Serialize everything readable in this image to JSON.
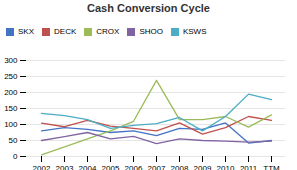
{
  "chart_data": {
    "type": "line",
    "title": "Cash Conversion Cycle",
    "categories": [
      "2002",
      "2003",
      "2004",
      "2005",
      "2006",
      "2007",
      "2008",
      "2009",
      "2010",
      "2011",
      "TTM"
    ],
    "series": [
      {
        "name": "SKX",
        "color": "#4472C4",
        "values": [
          80,
          90,
          85,
          75,
          80,
          65,
          88,
          85,
          105,
          42,
          50
        ]
      },
      {
        "name": "DECK",
        "color": "#C0504D",
        "values": [
          104,
          93,
          113,
          95,
          88,
          80,
          105,
          70,
          90,
          125,
          113
        ]
      },
      {
        "name": "CROX",
        "color": "#9BBB59",
        "values": [
          5,
          30,
          55,
          80,
          110,
          238,
          115,
          115,
          125,
          92,
          130
        ]
      },
      {
        "name": "SHOO",
        "color": "#8064A2",
        "values": [
          50,
          62,
          75,
          55,
          63,
          40,
          55,
          50,
          48,
          45,
          48
        ]
      },
      {
        "name": "KSWS",
        "color": "#4BACC6",
        "values": [
          135,
          128,
          115,
          88,
          97,
          103,
          122,
          80,
          125,
          195,
          178
        ]
      }
    ],
    "ylim": [
      0,
      300
    ],
    "yticks": [
      0,
      50,
      100,
      150,
      200,
      250,
      300
    ],
    "grid": true,
    "legend": "upper left"
  }
}
